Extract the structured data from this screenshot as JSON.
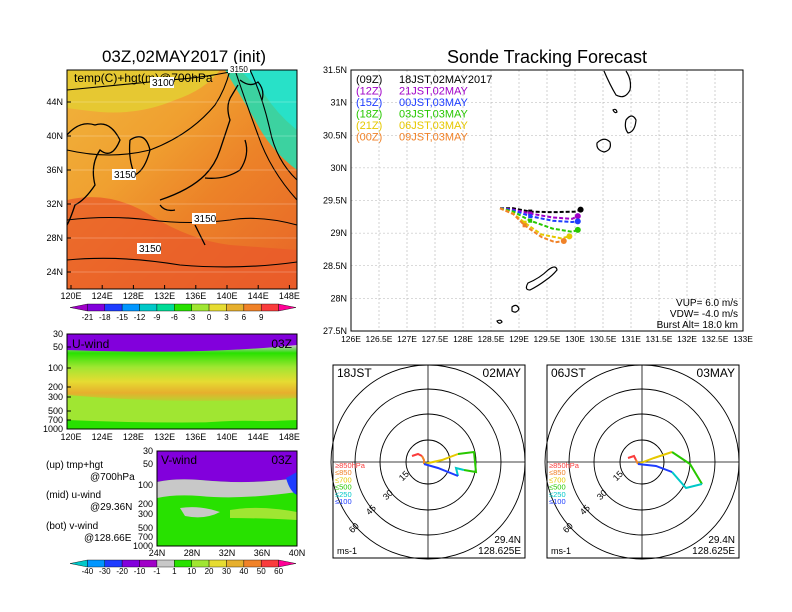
{
  "left": {
    "title": "03Z,02MAY2017 (init)",
    "map_label": "temp(C)+hgt(m)@700hPa",
    "contour_labels": [
      "3100",
      "3150",
      "3150",
      "3150",
      "3150"
    ],
    "lat_ticks": [
      "44N",
      "40N",
      "36N",
      "32N",
      "28N",
      "24N"
    ],
    "lon_ticks": [
      "120E",
      "124E",
      "128E",
      "132E",
      "136E",
      "140E",
      "144E",
      "148E"
    ],
    "temp_colorbar": {
      "labels": [
        "-21",
        "-18",
        "-15",
        "-12",
        "-9",
        "-6",
        "-3",
        "0",
        "3",
        "6",
        "9"
      ],
      "colors": [
        "#a000c8",
        "#8200dc",
        "#1e3cff",
        "#0096ff",
        "#00c8c8",
        "#00dc96",
        "#28e100",
        "#a0e632",
        "#e6dc32",
        "#e6af2d",
        "#f08228",
        "#fa3c3c",
        "#ff0096"
      ]
    },
    "u_panel": {
      "label": "U-wind",
      "time": "03Z",
      "levels": [
        "30",
        "50",
        "100",
        "200",
        "300",
        "500",
        "700",
        "1000"
      ],
      "lon_ticks": [
        "120E",
        "124E",
        "128E",
        "132E",
        "136E",
        "140E",
        "144E",
        "148E"
      ]
    },
    "v_panel": {
      "label": "V-wind",
      "time": "03Z",
      "levels": [
        "30",
        "50",
        "100",
        "200",
        "300",
        "500",
        "700",
        "1000"
      ],
      "lat_ticks": [
        "24N",
        "28N",
        "32N",
        "36N",
        "40N"
      ]
    },
    "legend_notes": [
      {
        "head": "(up) tmp+hgt",
        "sub": "@700hPa"
      },
      {
        "head": "(mid) u-wind",
        "sub": "@29.36N"
      },
      {
        "head": "(bot) v-wind",
        "sub": "@128.66E"
      }
    ],
    "wind_colorbar": {
      "labels": [
        "-40",
        "-30",
        "-20",
        "-10",
        "-1",
        "1",
        "10",
        "20",
        "30",
        "40",
        "50",
        "60"
      ],
      "colors": [
        "#00c8c8",
        "#0096ff",
        "#1e3cff",
        "#8200dc",
        "#a000c8",
        "#c8c8c8",
        "#28e100",
        "#a0e632",
        "#e6dc32",
        "#e6af2d",
        "#f08228",
        "#fa3c3c",
        "#ff0096"
      ]
    }
  },
  "right": {
    "title": "Sonde Tracking Forecast",
    "lat_ticks": [
      "31.5N",
      "31N",
      "30.5N",
      "30N",
      "29.5N",
      "29N",
      "28.5N",
      "28N",
      "27.5N"
    ],
    "lon_ticks": [
      "126E",
      "126.5E",
      "127E",
      "127.5E",
      "128E",
      "128.5E",
      "129E",
      "129.5E",
      "130E",
      "130.5E",
      "131E",
      "131.5E",
      "132E",
      "132.5E",
      "133E"
    ],
    "legend": [
      {
        "code": "(09Z)",
        "text": "18JST,02MAY2017",
        "color": "#000000"
      },
      {
        "code": "(12Z)",
        "text": "21JST,02MAY",
        "color": "#a000c8"
      },
      {
        "code": "(15Z)",
        "text": "00JST,03MAY",
        "color": "#1e3cff"
      },
      {
        "code": "(18Z)",
        "text": "03JST,03MAY",
        "color": "#28c800"
      },
      {
        "code": "(21Z)",
        "text": "06JST,03MAY",
        "color": "#e6c800"
      },
      {
        "code": "(00Z)",
        "text": "09JST,03MAY",
        "color": "#f08228"
      }
    ],
    "params": [
      "VUP= 6.0 m/s",
      "VDW= -4.0 m/s",
      "Burst Alt= 18.0 km"
    ]
  },
  "chart_data": [
    {
      "type": "line",
      "title": "Sonde Tracking Forecast",
      "xlim": [
        126,
        133
      ],
      "ylim": [
        27.5,
        31.5
      ],
      "series": [
        {
          "name": "(09Z) 18JST,02MAY2017",
          "x": [
            128.66,
            128.9,
            129.2,
            129.6,
            130.0,
            130.1
          ],
          "y": [
            29.38,
            29.38,
            29.33,
            29.32,
            29.33,
            29.36
          ]
        },
        {
          "name": "(12Z) 21JST,02MAY",
          "x": [
            128.66,
            128.9,
            129.2,
            129.6,
            129.95,
            130.05
          ],
          "y": [
            29.38,
            29.36,
            29.3,
            29.24,
            29.22,
            29.26
          ]
        },
        {
          "name": "(15Z) 00JST,03MAY",
          "x": [
            128.66,
            128.9,
            129.2,
            129.6,
            129.95,
            130.05
          ],
          "y": [
            29.38,
            29.35,
            29.26,
            29.19,
            29.17,
            29.18
          ]
        },
        {
          "name": "(18Z) 03JST,03MAY",
          "x": [
            128.66,
            128.9,
            129.2,
            129.6,
            129.95,
            130.05
          ],
          "y": [
            29.38,
            29.33,
            29.19,
            29.07,
            29.02,
            29.05
          ]
        },
        {
          "name": "(21Z) 06JST,03MAY",
          "x": [
            128.66,
            128.9,
            129.1,
            129.4,
            129.75,
            129.9
          ],
          "y": [
            29.38,
            29.3,
            29.16,
            28.98,
            28.92,
            28.95
          ]
        },
        {
          "name": "(00Z) 09JST,03MAY",
          "x": [
            128.66,
            128.9,
            129.1,
            129.4,
            129.65,
            129.8
          ],
          "y": [
            29.38,
            29.29,
            29.12,
            28.94,
            28.86,
            28.88
          ]
        }
      ]
    }
  ],
  "hodo1": {
    "time": "18JST",
    "date": "02MAY",
    "ring_labels": [
      "15",
      "30",
      "45",
      "60"
    ],
    "level_labels": [
      "≥850hPa",
      "≤850",
      "≤700",
      "≤500",
      "≤250",
      "≤100"
    ],
    "level_colors": [
      "#fa3c3c",
      "#f08228",
      "#e6c800",
      "#28c800",
      "#00c8c8",
      "#1e3cff"
    ],
    "unit": "ms-1",
    "lat": "29.4N",
    "lon": "128.625E"
  },
  "hodo2": {
    "time": "06JST",
    "date": "03MAY",
    "ring_labels": [
      "15",
      "30",
      "45",
      "60"
    ],
    "level_labels": [
      "≥850hPa",
      "≤850",
      "≤700",
      "≤500",
      "≤250",
      "≤100"
    ],
    "level_colors": [
      "#fa3c3c",
      "#f08228",
      "#e6c800",
      "#28c800",
      "#00c8c8",
      "#1e3cff"
    ],
    "unit": "ms-1",
    "lat": "29.4N",
    "lon": "128.625E"
  }
}
